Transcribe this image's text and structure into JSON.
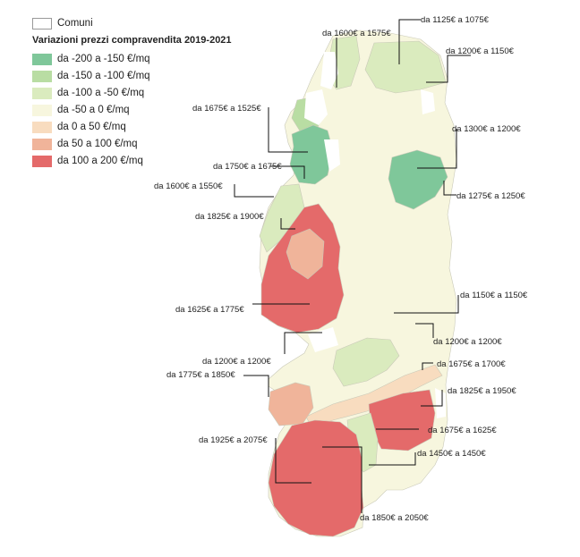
{
  "legend": {
    "comuni_label": "Comuni",
    "title": "Variazioni prezzi compravendita 2019-2021",
    "classes": [
      {
        "label": "da -200 a -150 €/mq",
        "color": "#7fc79a"
      },
      {
        "label": "da -150 a -100 €/mq",
        "color": "#b9dda3"
      },
      {
        "label": "da -100 a -50 €/mq",
        "color": "#daebbe"
      },
      {
        "label": "da -50 a 0 €/mq",
        "color": "#f7f6de"
      },
      {
        "label": "da 0 a 50 €/mq",
        "color": "#f8dcbf"
      },
      {
        "label": "da 50 a 100 €/mq",
        "color": "#f0b49a"
      },
      {
        "label": "da 100 a 200 €/mq",
        "color": "#e46a6a"
      }
    ]
  },
  "annotations": [
    "da 1600€ a 1575€",
    "da 1125€ a 1075€",
    "da 1200€ a 1150€",
    "da 1675€ a 1525€",
    "da 1300€ a 1200€",
    "da 1750€ a 1675€",
    "da 1600€ a 1550€",
    "da 1275€ a 1250€",
    "da 1825€ a 1900€",
    "da 1150€ a 1150€",
    "da 1625€ a 1775€",
    "da 1200€ a 1200€",
    "da 1200€ a 1200€",
    "da 1675€ a 1700€",
    "da 1775€ a 1850€",
    "da 1825€ a 1950€",
    "da 1675€ a 1625€",
    "da 1925€ a 2075€",
    "da 1450€ a 1450€",
    "da 1850€ a 2050€"
  ]
}
